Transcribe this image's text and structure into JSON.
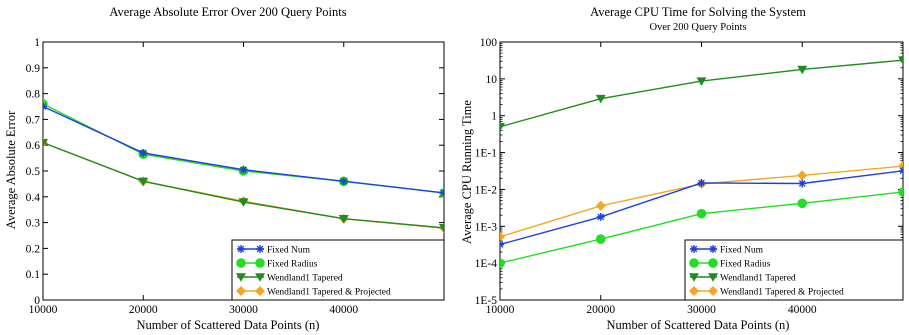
{
  "chart_data": [
    {
      "type": "line",
      "title": "Average Absolute Error Over 200 Query Points",
      "subtitle": "",
      "xlabel": "Number of Scattered Data Points (n)",
      "ylabel": "Average Absolute Error",
      "xlim": [
        10000,
        50000
      ],
      "ylim": [
        0,
        1
      ],
      "yscale": "linear",
      "x_ticks": [
        "10000",
        "20000",
        "30000",
        "40000"
      ],
      "y_ticks": [
        "0",
        "0.1",
        "0.2",
        "0.3",
        "0.4",
        "0.5",
        "0.6",
        "0.7",
        "0.8",
        "0.9",
        "1"
      ],
      "legend_position": "bottom-right",
      "grid": false,
      "series": [
        {
          "name": "Fixed Num",
          "color": "#1f3fe0",
          "marker": "star",
          "x": [
            10000,
            20000,
            30000,
            40000,
            50000
          ],
          "y": [
            0.75,
            0.57,
            0.505,
            0.46,
            0.415
          ]
        },
        {
          "name": "Fixed Radius",
          "color": "#22dd22",
          "marker": "circle",
          "x": [
            10000,
            20000,
            30000,
            40000,
            50000
          ],
          "y": [
            0.76,
            0.565,
            0.5,
            0.46,
            0.415
          ]
        },
        {
          "name": "Wendland1 Tapered",
          "color": "#1e8c1e",
          "marker": "triangle-down",
          "x": [
            10000,
            20000,
            30000,
            40000,
            50000
          ],
          "y": [
            0.61,
            0.46,
            0.38,
            0.315,
            0.28
          ]
        },
        {
          "name": "Wendland1 Tapered & Projected",
          "color": "#f5a623",
          "marker": "diamond",
          "x": [
            10000,
            20000,
            30000,
            40000,
            50000
          ],
          "y": [
            0.61,
            0.46,
            0.383,
            0.315,
            0.278
          ]
        }
      ]
    },
    {
      "type": "line",
      "title": "Average CPU Time for  Solving the System",
      "subtitle": "Over 200 Query Points",
      "xlabel": "Number of Scattered Data Points (n)",
      "ylabel": "Average CPU Running Time",
      "xlim": [
        10000,
        50000
      ],
      "ylim": [
        1e-05,
        100
      ],
      "yscale": "log",
      "x_ticks": [
        "10000",
        "20000",
        "30000",
        "40000"
      ],
      "y_ticks": [
        "1E-5",
        "1E-4",
        "1E-3",
        "1E-2",
        "1E-1",
        "1",
        "10",
        "100"
      ],
      "legend_position": "bottom-right",
      "grid": false,
      "series": [
        {
          "name": "Fixed Num",
          "color": "#1f3fe0",
          "marker": "star",
          "x": [
            10000,
            20000,
            30000,
            40000,
            50000
          ],
          "y": [
            0.00032,
            0.0018,
            0.015,
            0.0145,
            0.032
          ]
        },
        {
          "name": "Fixed Radius",
          "color": "#22dd22",
          "marker": "circle",
          "x": [
            10000,
            20000,
            30000,
            40000,
            50000
          ],
          "y": [
            0.0001,
            0.00045,
            0.0022,
            0.0042,
            0.0085
          ]
        },
        {
          "name": "Wendland1 Tapered",
          "color": "#1e8c1e",
          "marker": "triangle-down",
          "x": [
            10000,
            20000,
            30000,
            40000,
            50000
          ],
          "y": [
            0.5,
            2.9,
            8.7,
            18,
            32
          ]
        },
        {
          "name": "Wendland1 Tapered & Projected",
          "color": "#f5a623",
          "marker": "diamond",
          "x": [
            10000,
            20000,
            30000,
            40000,
            50000
          ],
          "y": [
            0.00052,
            0.0036,
            0.014,
            0.024,
            0.043
          ]
        }
      ]
    }
  ]
}
